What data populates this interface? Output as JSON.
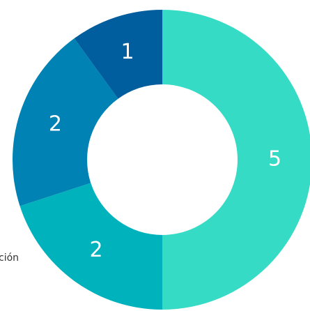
{
  "chart_data": {
    "type": "donut",
    "values": [
      5,
      2,
      2,
      1
    ],
    "colors": [
      "#35dbc5",
      "#00b2bc",
      "#0082b4",
      "#005e9e"
    ],
    "annotations": [
      "ción"
    ]
  }
}
